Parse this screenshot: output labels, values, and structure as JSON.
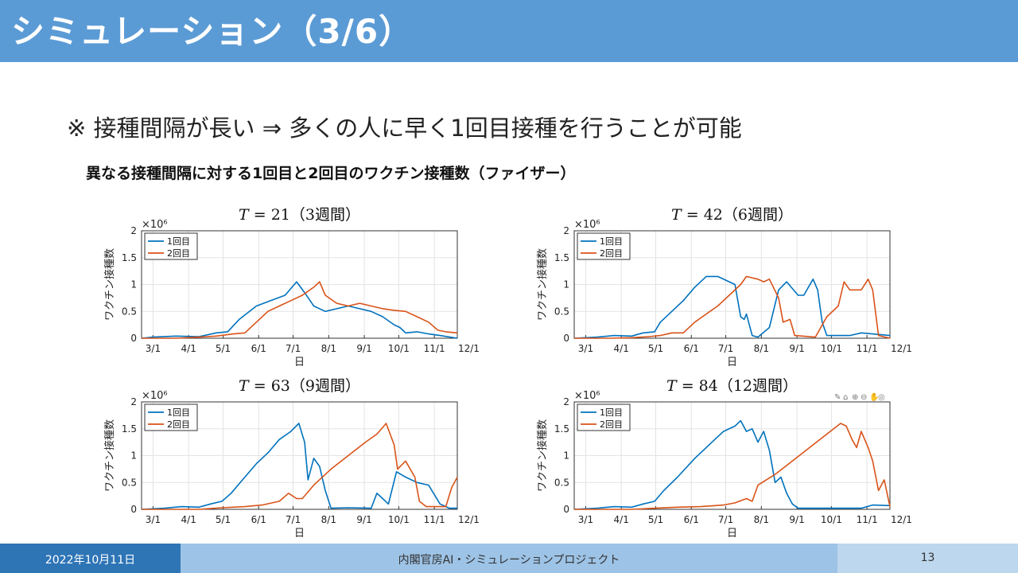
{
  "slide": {
    "title": "シミュレーション（3/6）",
    "note": "※ 接種間隔が長い ⇒ 多くの人に早く1回目接種を行うことが可能",
    "subtitle": "異なる接種間隔に対する1回目と2回目のワクチン接種数（ファイザー）"
  },
  "footer": {
    "date": "2022年10月11日",
    "org": "内閣官房AI・シミュレーションプロジェクト",
    "page": "13"
  },
  "colors": {
    "title_bar": "#5B9BD5",
    "dose1": "#0072BD",
    "dose2": "#D95319"
  },
  "chart_data": [
    {
      "type": "line",
      "title": "𝑇 = 21（3週間）",
      "xlabel": "日",
      "ylabel": "ワクチン接種数",
      "exponent_label": "×10⁶",
      "ylim": [
        0,
        2
      ],
      "yticks": [
        "0",
        "0.5",
        "1",
        "1.5",
        "2"
      ],
      "x_ticks": [
        "3/1",
        "4/1",
        "5/1",
        "6/1",
        "7/1",
        "8/1",
        "9/1",
        "10/1",
        "11/1",
        "12/1"
      ],
      "grid": true,
      "legend": "top-left",
      "series": [
        {
          "name": "1回目",
          "points": [
            [
              -10,
              0
            ],
            [
              0,
              0.02
            ],
            [
              20,
              0.04
            ],
            [
              40,
              0.03
            ],
            [
              55,
              0.1
            ],
            [
              65,
              0.12
            ],
            [
              75,
              0.35
            ],
            [
              90,
              0.6
            ],
            [
              105,
              0.72
            ],
            [
              115,
              0.8
            ],
            [
              125,
              1.05
            ],
            [
              132,
              0.85
            ],
            [
              140,
              0.6
            ],
            [
              150,
              0.5
            ],
            [
              160,
              0.55
            ],
            [
              170,
              0.6
            ],
            [
              180,
              0.55
            ],
            [
              190,
              0.5
            ],
            [
              200,
              0.4
            ],
            [
              210,
              0.25
            ],
            [
              215,
              0.2
            ],
            [
              220,
              0.1
            ],
            [
              230,
              0.12
            ],
            [
              240,
              0.08
            ],
            [
              250,
              0.05
            ],
            [
              265,
              0
            ]
          ]
        },
        {
          "name": "2回目",
          "points": [
            [
              -10,
              0
            ],
            [
              20,
              0
            ],
            [
              40,
              0.02
            ],
            [
              55,
              0.04
            ],
            [
              70,
              0.08
            ],
            [
              80,
              0.1
            ],
            [
              90,
              0.3
            ],
            [
              100,
              0.5
            ],
            [
              110,
              0.6
            ],
            [
              120,
              0.7
            ],
            [
              130,
              0.8
            ],
            [
              140,
              0.95
            ],
            [
              145,
              1.05
            ],
            [
              150,
              0.8
            ],
            [
              160,
              0.65
            ],
            [
              170,
              0.6
            ],
            [
              180,
              0.65
            ],
            [
              190,
              0.6
            ],
            [
              200,
              0.55
            ],
            [
              210,
              0.52
            ],
            [
              220,
              0.5
            ],
            [
              230,
              0.4
            ],
            [
              240,
              0.3
            ],
            [
              248,
              0.15
            ],
            [
              255,
              0.12
            ],
            [
              265,
              0.1
            ]
          ]
        }
      ]
    },
    {
      "type": "line",
      "title": "𝑇 = 42（6週間）",
      "xlabel": "日",
      "ylabel": "ワクチン接種数",
      "exponent_label": "×10⁶",
      "ylim": [
        0,
        2
      ],
      "yticks": [
        "0",
        "0.5",
        "1",
        "1.5",
        "2"
      ],
      "x_ticks": [
        "3/1",
        "4/1",
        "5/1",
        "6/1",
        "7/1",
        "8/1",
        "9/1",
        "10/1",
        "11/1",
        "12/1"
      ],
      "grid": true,
      "legend": "top-left",
      "series": [
        {
          "name": "1回目",
          "points": [
            [
              -10,
              0
            ],
            [
              10,
              0.02
            ],
            [
              25,
              0.05
            ],
            [
              40,
              0.04
            ],
            [
              50,
              0.1
            ],
            [
              60,
              0.12
            ],
            [
              65,
              0.3
            ],
            [
              75,
              0.5
            ],
            [
              85,
              0.7
            ],
            [
              95,
              0.95
            ],
            [
              105,
              1.15
            ],
            [
              115,
              1.15
            ],
            [
              125,
              1.05
            ],
            [
              130,
              1.0
            ],
            [
              135,
              0.4
            ],
            [
              138,
              0.35
            ],
            [
              140,
              0.45
            ],
            [
              145,
              0.05
            ],
            [
              150,
              0.02
            ],
            [
              160,
              0.2
            ],
            [
              168,
              0.9
            ],
            [
              175,
              1.05
            ],
            [
              185,
              0.8
            ],
            [
              190,
              0.8
            ],
            [
              198,
              1.1
            ],
            [
              202,
              0.9
            ],
            [
              206,
              0.3
            ],
            [
              210,
              0.05
            ],
            [
              230,
              0.05
            ],
            [
              240,
              0.1
            ],
            [
              250,
              0.08
            ],
            [
              265,
              0.05
            ]
          ]
        },
        {
          "name": "2回目",
          "points": [
            [
              -10,
              0
            ],
            [
              20,
              0
            ],
            [
              40,
              0.01
            ],
            [
              55,
              0.03
            ],
            [
              65,
              0.05
            ],
            [
              75,
              0.1
            ],
            [
              85,
              0.1
            ],
            [
              95,
              0.3
            ],
            [
              105,
              0.45
            ],
            [
              115,
              0.6
            ],
            [
              125,
              0.8
            ],
            [
              135,
              1.0
            ],
            [
              140,
              1.15
            ],
            [
              150,
              1.1
            ],
            [
              155,
              1.05
            ],
            [
              160,
              1.1
            ],
            [
              168,
              0.75
            ],
            [
              172,
              0.3
            ],
            [
              178,
              0.35
            ],
            [
              182,
              0.05
            ],
            [
              200,
              0.02
            ],
            [
              210,
              0.4
            ],
            [
              220,
              0.6
            ],
            [
              225,
              1.05
            ],
            [
              230,
              0.9
            ],
            [
              240,
              0.9
            ],
            [
              246,
              1.1
            ],
            [
              250,
              0.9
            ],
            [
              255,
              0.05
            ],
            [
              265,
              0
            ]
          ]
        }
      ]
    },
    {
      "type": "line",
      "title": "𝑇 = 63（9週間）",
      "xlabel": "日",
      "ylabel": "ワクチン接種数",
      "exponent_label": "×10⁶",
      "ylim": [
        0,
        2
      ],
      "yticks": [
        "0",
        "0.5",
        "1",
        "1.5",
        "2"
      ],
      "x_ticks": [
        "3/1",
        "4/1",
        "5/1",
        "6/1",
        "7/1",
        "8/1",
        "9/1",
        "10/1",
        "11/1",
        "12/1"
      ],
      "grid": true,
      "legend": "top-left",
      "series": [
        {
          "name": "1回目",
          "points": [
            [
              -10,
              0
            ],
            [
              10,
              0.02
            ],
            [
              25,
              0.05
            ],
            [
              40,
              0.04
            ],
            [
              50,
              0.1
            ],
            [
              60,
              0.15
            ],
            [
              68,
              0.3
            ],
            [
              78,
              0.55
            ],
            [
              90,
              0.85
            ],
            [
              100,
              1.05
            ],
            [
              110,
              1.3
            ],
            [
              120,
              1.45
            ],
            [
              127,
              1.6
            ],
            [
              132,
              1.25
            ],
            [
              135,
              0.55
            ],
            [
              140,
              0.95
            ],
            [
              145,
              0.8
            ],
            [
              150,
              0.35
            ],
            [
              155,
              0.02
            ],
            [
              170,
              0.03
            ],
            [
              190,
              0.02
            ],
            [
              195,
              0.3
            ],
            [
              200,
              0.2
            ],
            [
              205,
              0.1
            ],
            [
              212,
              0.7
            ],
            [
              220,
              0.6
            ],
            [
              230,
              0.5
            ],
            [
              240,
              0.45
            ],
            [
              250,
              0.1
            ],
            [
              258,
              0.02
            ],
            [
              265,
              0.02
            ]
          ]
        },
        {
          "name": "2回目",
          "points": [
            [
              -10,
              0
            ],
            [
              40,
              0
            ],
            [
              60,
              0.03
            ],
            [
              80,
              0.05
            ],
            [
              95,
              0.08
            ],
            [
              110,
              0.15
            ],
            [
              118,
              0.3
            ],
            [
              125,
              0.2
            ],
            [
              130,
              0.2
            ],
            [
              140,
              0.45
            ],
            [
              155,
              0.75
            ],
            [
              170,
              1.0
            ],
            [
              185,
              1.25
            ],
            [
              195,
              1.4
            ],
            [
              203,
              1.6
            ],
            [
              210,
              1.2
            ],
            [
              213,
              0.75
            ],
            [
              220,
              0.9
            ],
            [
              228,
              0.6
            ],
            [
              232,
              0.15
            ],
            [
              238,
              0.05
            ],
            [
              255,
              0.05
            ],
            [
              260,
              0.4
            ],
            [
              265,
              0.6
            ]
          ]
        }
      ]
    },
    {
      "type": "line",
      "title": "𝑇 = 84（12週間）",
      "xlabel": "日",
      "ylabel": "ワクチン接種数",
      "exponent_label": "×10⁶",
      "ylim": [
        0,
        2
      ],
      "yticks": [
        "0",
        "0.5",
        "1",
        "1.5",
        "2"
      ],
      "x_ticks": [
        "3/1",
        "4/1",
        "5/1",
        "6/1",
        "7/1",
        "8/1",
        "9/1",
        "10/1",
        "11/1",
        "12/1"
      ],
      "grid": true,
      "legend": "top-left",
      "series": [
        {
          "name": "1回目",
          "points": [
            [
              -10,
              0
            ],
            [
              10,
              0.02
            ],
            [
              25,
              0.05
            ],
            [
              40,
              0.04
            ],
            [
              50,
              0.1
            ],
            [
              60,
              0.15
            ],
            [
              68,
              0.35
            ],
            [
              80,
              0.6
            ],
            [
              95,
              0.95
            ],
            [
              110,
              1.25
            ],
            [
              120,
              1.45
            ],
            [
              130,
              1.55
            ],
            [
              135,
              1.65
            ],
            [
              140,
              1.45
            ],
            [
              145,
              1.5
            ],
            [
              150,
              1.25
            ],
            [
              155,
              1.45
            ],
            [
              160,
              1.1
            ],
            [
              165,
              0.5
            ],
            [
              170,
              0.6
            ],
            [
              175,
              0.3
            ],
            [
              180,
              0.1
            ],
            [
              185,
              0.02
            ],
            [
              200,
              0.02
            ],
            [
              240,
              0.02
            ],
            [
              250,
              0.08
            ],
            [
              265,
              0.07
            ]
          ]
        },
        {
          "name": "2回目",
          "points": [
            [
              -10,
              0
            ],
            [
              40,
              0
            ],
            [
              60,
              0.02
            ],
            [
              80,
              0.04
            ],
            [
              100,
              0.05
            ],
            [
              120,
              0.08
            ],
            [
              130,
              0.12
            ],
            [
              140,
              0.2
            ],
            [
              145,
              0.15
            ],
            [
              150,
              0.45
            ],
            [
              165,
              0.65
            ],
            [
              180,
              0.9
            ],
            [
              195,
              1.15
            ],
            [
              210,
              1.4
            ],
            [
              222,
              1.6
            ],
            [
              227,
              1.55
            ],
            [
              232,
              1.3
            ],
            [
              236,
              1.15
            ],
            [
              240,
              1.45
            ],
            [
              246,
              1.15
            ],
            [
              250,
              0.9
            ],
            [
              255,
              0.35
            ],
            [
              260,
              0.55
            ],
            [
              265,
              0.05
            ]
          ]
        }
      ]
    }
  ]
}
